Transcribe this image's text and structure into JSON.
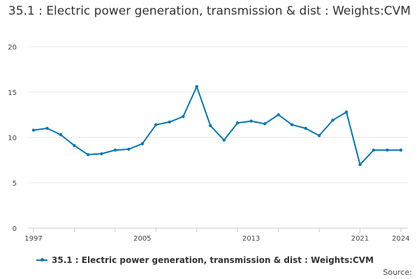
{
  "chart_data": {
    "type": "line",
    "title": "35.1 : Electric power generation, transmission & dist : Weights:CVM",
    "xlabel": "",
    "ylabel": "",
    "x": [
      1997,
      1998,
      1999,
      2000,
      2001,
      2002,
      2003,
      2004,
      2005,
      2006,
      2007,
      2008,
      2009,
      2010,
      2011,
      2012,
      2013,
      2014,
      2015,
      2016,
      2017,
      2018,
      2019,
      2020,
      2021,
      2022,
      2023,
      2024
    ],
    "series": [
      {
        "name": "35.1 : Electric power generation, transmission & dist : Weights:CVM",
        "values": [
          10.8,
          11.0,
          10.3,
          9.1,
          8.1,
          8.2,
          8.6,
          8.7,
          9.3,
          11.4,
          11.7,
          12.3,
          15.6,
          11.3,
          9.7,
          11.6,
          11.8,
          11.5,
          12.5,
          11.4,
          11.0,
          10.2,
          11.9,
          12.8,
          7.0,
          8.6,
          8.6,
          8.6
        ],
        "color": "#0077b6"
      }
    ],
    "x_tick_labels": [
      "1997",
      "2005",
      "2013",
      "2021",
      "2024"
    ],
    "y_ticks": [
      "0",
      "5",
      "10",
      "15",
      "20"
    ],
    "ylim": [
      0,
      20
    ],
    "grid": true,
    "legend_position": "bottom"
  },
  "footer": {
    "source_label": "Source:"
  }
}
